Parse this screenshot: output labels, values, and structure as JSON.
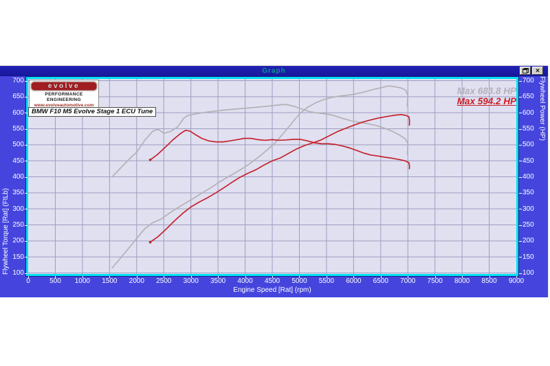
{
  "window": {
    "title": "Graph",
    "restore_button": "restore",
    "close_button": "close"
  },
  "logo": {
    "name": "evolve",
    "line2": "PERFORMANCE ENGINEERING",
    "line3": "www.evolveautomotive.com"
  },
  "annotation": {
    "text": "BMW F10 M5 Evolve Stage 1 ECU Tune"
  },
  "legend": {
    "items": [
      {
        "label": "Max 683.8 HP",
        "color": "#B4B0B8"
      },
      {
        "label": "Max 594.2 HP",
        "color": "#CB1F28"
      }
    ]
  },
  "colors": {
    "window_background": "#4545DE",
    "titlebar": "#1B1BA6",
    "title_text": "#0B9292",
    "plot_background": "#E0E0F1",
    "grid": "#9D9DBE",
    "plot_border": "#00DFF4",
    "axis_text": "#FFFFFF",
    "run_a": "#B4B0B4",
    "run_b": "#C5222A"
  },
  "chart_data": {
    "type": "line",
    "title": "",
    "xlabel": "Engine Speed [Rat] (rpm)",
    "ylabel_left": "Flywheel Torque [Rat] (FtLb)",
    "ylabel_right": "Flywheel Power (HP)",
    "xlim": [
      0,
      9000
    ],
    "ylim": [
      100,
      700
    ],
    "grid": true,
    "legend_position": "top-right",
    "x_ticks": [
      0,
      500,
      1000,
      1500,
      2000,
      2500,
      3000,
      3500,
      4000,
      4500,
      5000,
      5500,
      6000,
      6500,
      7000,
      7500,
      8000,
      8500,
      9000
    ],
    "y_ticks": [
      700,
      650,
      600,
      550,
      500,
      450,
      400,
      350,
      300,
      250,
      200,
      150,
      100
    ],
    "series": [
      {
        "name": "run-a-torque-ftlb",
        "legend": "Max 683.8 HP",
        "color": "#B4B0B4",
        "start_dot": false,
        "points": [
          [
            1550,
            400
          ],
          [
            1700,
            427
          ],
          [
            1850,
            453
          ],
          [
            2000,
            477
          ],
          [
            2150,
            514
          ],
          [
            2300,
            543
          ],
          [
            2400,
            548
          ],
          [
            2500,
            536
          ],
          [
            2620,
            541
          ],
          [
            2750,
            555
          ],
          [
            2870,
            583
          ],
          [
            2950,
            592
          ],
          [
            3100,
            597
          ],
          [
            3250,
            601
          ],
          [
            3400,
            604
          ],
          [
            3600,
            608
          ],
          [
            3800,
            611
          ],
          [
            4000,
            614
          ],
          [
            4200,
            617
          ],
          [
            4400,
            620
          ],
          [
            4600,
            624
          ],
          [
            4750,
            626
          ],
          [
            4900,
            620
          ],
          [
            5050,
            611
          ],
          [
            5200,
            603
          ],
          [
            5350,
            599
          ],
          [
            5500,
            596
          ],
          [
            5650,
            591
          ],
          [
            5800,
            582
          ],
          [
            5950,
            575
          ],
          [
            6100,
            570
          ],
          [
            6250,
            566
          ],
          [
            6400,
            561
          ],
          [
            6550,
            553
          ],
          [
            6700,
            543
          ],
          [
            6850,
            530
          ],
          [
            6950,
            519
          ],
          [
            7000,
            505
          ],
          [
            6996,
            484
          ],
          [
            6992,
            470
          ]
        ]
      },
      {
        "name": "run-a-power-hp",
        "legend": "Max 683.8 HP",
        "color": "#B4B0B4",
        "start_dot": false,
        "points": [
          [
            1550,
            116
          ],
          [
            1700,
            146
          ],
          [
            1850,
            176
          ],
          [
            2000,
            208
          ],
          [
            2150,
            238
          ],
          [
            2300,
            257
          ],
          [
            2450,
            268
          ],
          [
            2600,
            286
          ],
          [
            2750,
            303
          ],
          [
            2900,
            318
          ],
          [
            3050,
            333
          ],
          [
            3200,
            349
          ],
          [
            3350,
            364
          ],
          [
            3500,
            381
          ],
          [
            3650,
            396
          ],
          [
            3800,
            411
          ],
          [
            3950,
            426
          ],
          [
            4100,
            443
          ],
          [
            4250,
            462
          ],
          [
            4400,
            483
          ],
          [
            4550,
            505
          ],
          [
            4700,
            535
          ],
          [
            4850,
            565
          ],
          [
            5000,
            596
          ],
          [
            5150,
            617
          ],
          [
            5300,
            631
          ],
          [
            5450,
            641
          ],
          [
            5600,
            648
          ],
          [
            5750,
            652
          ],
          [
            5900,
            655
          ],
          [
            6050,
            659
          ],
          [
            6200,
            665
          ],
          [
            6350,
            672
          ],
          [
            6500,
            678
          ],
          [
            6650,
            683.8
          ],
          [
            6800,
            680
          ],
          [
            6900,
            676
          ],
          [
            6960,
            670
          ],
          [
            7000,
            655
          ],
          [
            6995,
            636
          ],
          [
            6988,
            621
          ]
        ]
      },
      {
        "name": "run-b-torque-ftlb",
        "legend": "Max 594.2 HP",
        "color": "#C5222A",
        "start_dot": true,
        "points": [
          [
            2250,
            453
          ],
          [
            2380,
            469
          ],
          [
            2520,
            491
          ],
          [
            2660,
            514
          ],
          [
            2800,
            534
          ],
          [
            2900,
            545
          ],
          [
            2980,
            543
          ],
          [
            3080,
            532
          ],
          [
            3200,
            520
          ],
          [
            3330,
            512
          ],
          [
            3460,
            509
          ],
          [
            3590,
            509
          ],
          [
            3720,
            512
          ],
          [
            3850,
            516
          ],
          [
            3980,
            520
          ],
          [
            4110,
            520
          ],
          [
            4240,
            516
          ],
          [
            4370,
            514
          ],
          [
            4500,
            516
          ],
          [
            4630,
            514
          ],
          [
            4760,
            515
          ],
          [
            4890,
            517
          ],
          [
            5020,
            517
          ],
          [
            5150,
            512
          ],
          [
            5280,
            506
          ],
          [
            5410,
            503
          ],
          [
            5540,
            503
          ],
          [
            5670,
            501
          ],
          [
            5800,
            496
          ],
          [
            5930,
            490
          ],
          [
            6060,
            482
          ],
          [
            6190,
            474
          ],
          [
            6320,
            468
          ],
          [
            6450,
            465
          ],
          [
            6580,
            461
          ],
          [
            6710,
            458
          ],
          [
            6840,
            454
          ],
          [
            6950,
            450
          ],
          [
            7020,
            444
          ],
          [
            7032,
            432
          ],
          [
            7028,
            425
          ]
        ]
      },
      {
        "name": "run-b-power-hp",
        "legend": "Max 594.2 HP",
        "color": "#C5222A",
        "start_dot": true,
        "points": [
          [
            2250,
            196
          ],
          [
            2400,
            214
          ],
          [
            2550,
            238
          ],
          [
            2700,
            263
          ],
          [
            2850,
            286
          ],
          [
            3000,
            306
          ],
          [
            3150,
            321
          ],
          [
            3300,
            334
          ],
          [
            3450,
            349
          ],
          [
            3600,
            365
          ],
          [
            3750,
            382
          ],
          [
            3900,
            398
          ],
          [
            4050,
            411
          ],
          [
            4200,
            422
          ],
          [
            4350,
            437
          ],
          [
            4500,
            450
          ],
          [
            4650,
            459
          ],
          [
            4800,
            473
          ],
          [
            4950,
            487
          ],
          [
            5100,
            498
          ],
          [
            5250,
            506
          ],
          [
            5400,
            515
          ],
          [
            5550,
            528
          ],
          [
            5700,
            541
          ],
          [
            5850,
            551
          ],
          [
            6000,
            561
          ],
          [
            6150,
            570
          ],
          [
            6300,
            577
          ],
          [
            6450,
            583
          ],
          [
            6600,
            588
          ],
          [
            6750,
            592
          ],
          [
            6870,
            594.2
          ],
          [
            6960,
            592
          ],
          [
            7020,
            587
          ],
          [
            7032,
            576
          ],
          [
            7028,
            561
          ]
        ]
      }
    ]
  }
}
